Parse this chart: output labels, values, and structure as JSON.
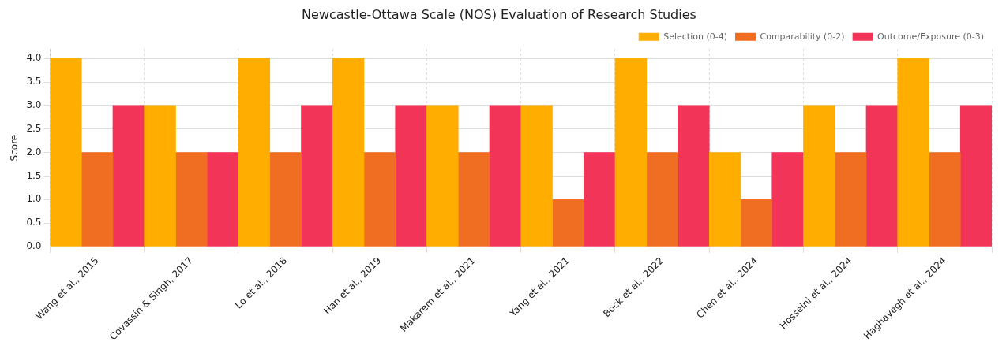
{
  "chart_data": {
    "type": "bar",
    "title": "Newcastle-Ottawa Scale (NOS) Evaluation of Research Studies",
    "ylabel": "Score",
    "categories": [
      "Wang et al., 2015",
      "Covassin & Singh, 2017",
      "Lo et al., 2018",
      "Han et al., 2019",
      "Makarem et al., 2021",
      "Yang et al., 2021",
      "Bock et al., 2022",
      "Chen et al., 2024",
      "Hosseini et al., 2024",
      "Haghayegh et al., 2024"
    ],
    "series": [
      {
        "name": "Selection (0-4)",
        "color": "#ffae00",
        "values": [
          4,
          3,
          4,
          4,
          3,
          3,
          4,
          2,
          3,
          4
        ]
      },
      {
        "name": "Comparability (0-2)",
        "color": "#f06e22",
        "values": [
          2,
          2,
          2,
          2,
          2,
          1,
          2,
          1,
          2,
          2
        ]
      },
      {
        "name": "Outcome/Exposure (0-3)",
        "color": "#f23458",
        "values": [
          3,
          2,
          3,
          3,
          3,
          2,
          3,
          2,
          3,
          3
        ]
      }
    ],
    "ylim": [
      0,
      4.2
    ],
    "yticks": [
      {
        "value": 0,
        "label": "0.0"
      },
      0.5,
      {
        "value": 1,
        "label": "1.0"
      },
      1.5,
      {
        "value": 2,
        "label": "2.0"
      },
      2.5,
      {
        "value": 3,
        "label": "3.0"
      },
      3.5,
      {
        "value": 4,
        "label": "4.0"
      }
    ],
    "grid": true,
    "legend": "top right"
  }
}
